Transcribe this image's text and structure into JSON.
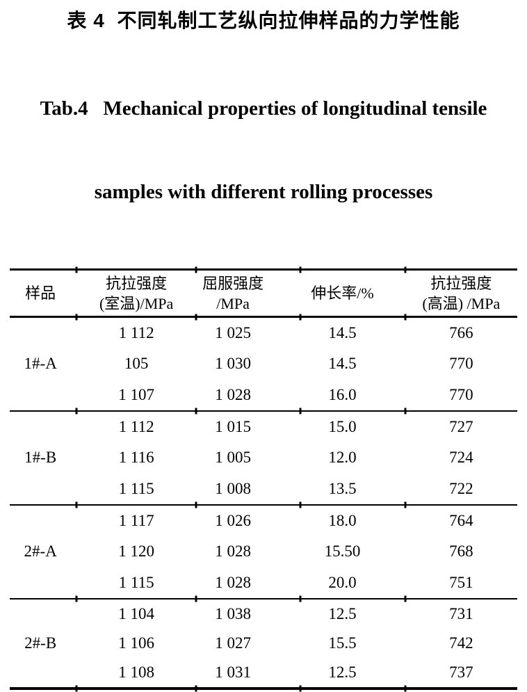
{
  "page": {
    "title_zh": "表 4  不同轧制工艺纵向拉伸样品的力学性能",
    "title_en_line1": "Tab.4   Mechanical properties of longitudinal tensile",
    "title_en_line2": "samples with different rolling processes"
  },
  "table": {
    "columns": [
      {
        "line1": "样品",
        "line2": ""
      },
      {
        "line1": "抗拉强度",
        "line2": "(室温)/MPa"
      },
      {
        "line1": "屈服强度",
        "line2": "/MPa"
      },
      {
        "line1": "伸长率/%",
        "line2": ""
      },
      {
        "line1": "抗拉强度",
        "line2": "(高温) /MPa"
      }
    ],
    "groups": [
      {
        "sample": "1#-A",
        "rows": [
          [
            "1 112",
            "1 025",
            "14.5",
            "766"
          ],
          [
            "105",
            "1 030",
            "14.5",
            "770"
          ],
          [
            "1 107",
            "1 028",
            "16.0",
            "770"
          ]
        ]
      },
      {
        "sample": "1#-B",
        "rows": [
          [
            "1 112",
            "1 015",
            "15.0",
            "727"
          ],
          [
            "1 116",
            "1 005",
            "12.0",
            "724"
          ],
          [
            "1 115",
            "1 008",
            "13.5",
            "722"
          ]
        ]
      },
      {
        "sample": "2#-A",
        "rows": [
          [
            "1 117",
            "1 026",
            "18.0",
            "764"
          ],
          [
            "1 120",
            "1 028",
            "15.50",
            "768"
          ],
          [
            "1 115",
            "1 028",
            "20.0",
            "751"
          ]
        ]
      },
      {
        "sample": "2#-B",
        "rows": [
          [
            "1 104",
            "1 038",
            "12.5",
            "731"
          ],
          [
            "1 106",
            "1 027",
            "15.5",
            "742"
          ],
          [
            "1 108",
            "1 031",
            "12.5",
            "737"
          ]
        ]
      }
    ]
  }
}
